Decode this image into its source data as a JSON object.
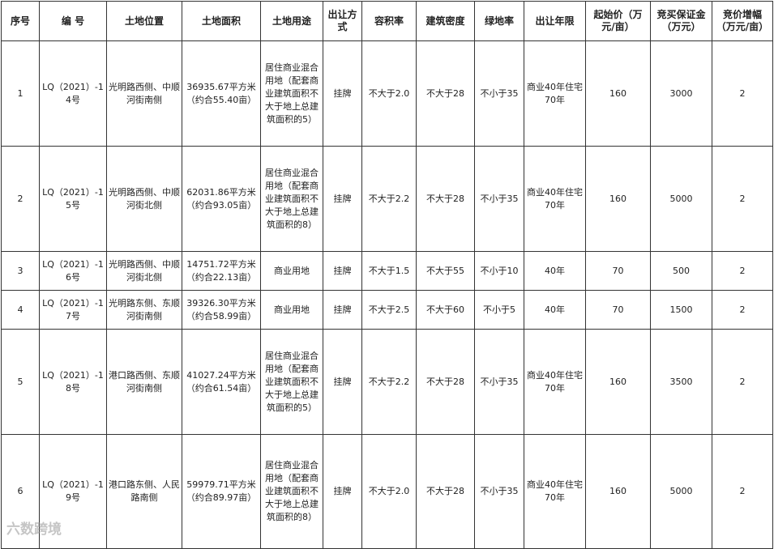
{
  "headers": [
    "序号",
    "编 号",
    "土地位置",
    "土地面积",
    "土地用途",
    "出让方式",
    "容积率",
    "建筑密度",
    "绿地率",
    "出让年限",
    "起始价（万元/亩）",
    "竞买保证金（万元）",
    "竞价增幅（万元/亩）"
  ],
  "rows": [
    {
      "no": "1",
      "code": "LQ（2021）-14号",
      "location": "光明路西侧、中顺河街南侧",
      "area": "36935.67平方米（约合55.40亩）",
      "use": "居住商业混合用地（配套商业建筑面积不大于地上总建筑面积的5）",
      "method": "挂牌",
      "far": "不大于2.0",
      "density": "不大于28",
      "green": "不小于35",
      "term": "商业40年住宅70年",
      "price": "160",
      "deposit": "3000",
      "increment": "2"
    },
    {
      "no": "2",
      "code": "LQ（2021）-15号",
      "location": "光明路西侧、中顺河街北侧",
      "area": "62031.86平方米（约合93.05亩）",
      "use": "居住商业混合用地（配套商业建筑面积不大于地上总建筑面积的8）",
      "method": "挂牌",
      "far": "不大于2.2",
      "density": "不大于28",
      "green": "不小于35",
      "term": "商业40年住宅70年",
      "price": "160",
      "deposit": "5000",
      "increment": "2"
    },
    {
      "no": "3",
      "code": "LQ（2021）-16号",
      "location": "光明路西侧、中顺河街北侧",
      "area": "14751.72平方米（约合22.13亩）",
      "use": "商业用地",
      "method": "挂牌",
      "far": "不大于1.5",
      "density": "不大于55",
      "green": "不小于10",
      "term": "40年",
      "price": "70",
      "deposit": "500",
      "increment": "2"
    },
    {
      "no": "4",
      "code": "LQ（2021）-17号",
      "location": "光明路东侧、东顺河街南侧",
      "area": "39326.30平方米（约合58.99亩）",
      "use": "商业用地",
      "method": "挂牌",
      "far": "不大于2.5",
      "density": "不大于60",
      "green": "不小于5",
      "term": "40年",
      "price": "70",
      "deposit": "1500",
      "increment": "2"
    },
    {
      "no": "5",
      "code": "LQ（2021）-18号",
      "location": "港口路西侧、东顺河街南侧",
      "area": "41027.24平方米（约合61.54亩）",
      "use": "居住商业混合用地（配套商业建筑面积不大于地上总建筑面积的5）",
      "method": "挂牌",
      "far": "不大于2.2",
      "density": "不大于28",
      "green": "不小于35",
      "term": "商业40年住宅70年",
      "price": "160",
      "deposit": "3500",
      "increment": "2"
    },
    {
      "no": "6",
      "code": "LQ（2021）-19号",
      "location": "港口路东侧、人民路南侧",
      "area": "59979.71平方米（约合89.97亩）",
      "use": "居住商业混合用地（配套商业建筑面积不大于地上总建筑面积的8）",
      "method": "挂牌",
      "far": "不大于2.0",
      "density": "不大于28",
      "green": "不小于35",
      "term": "商业40年住宅70年",
      "price": "160",
      "deposit": "5000",
      "increment": "2"
    }
  ],
  "watermark": "六数跨境"
}
